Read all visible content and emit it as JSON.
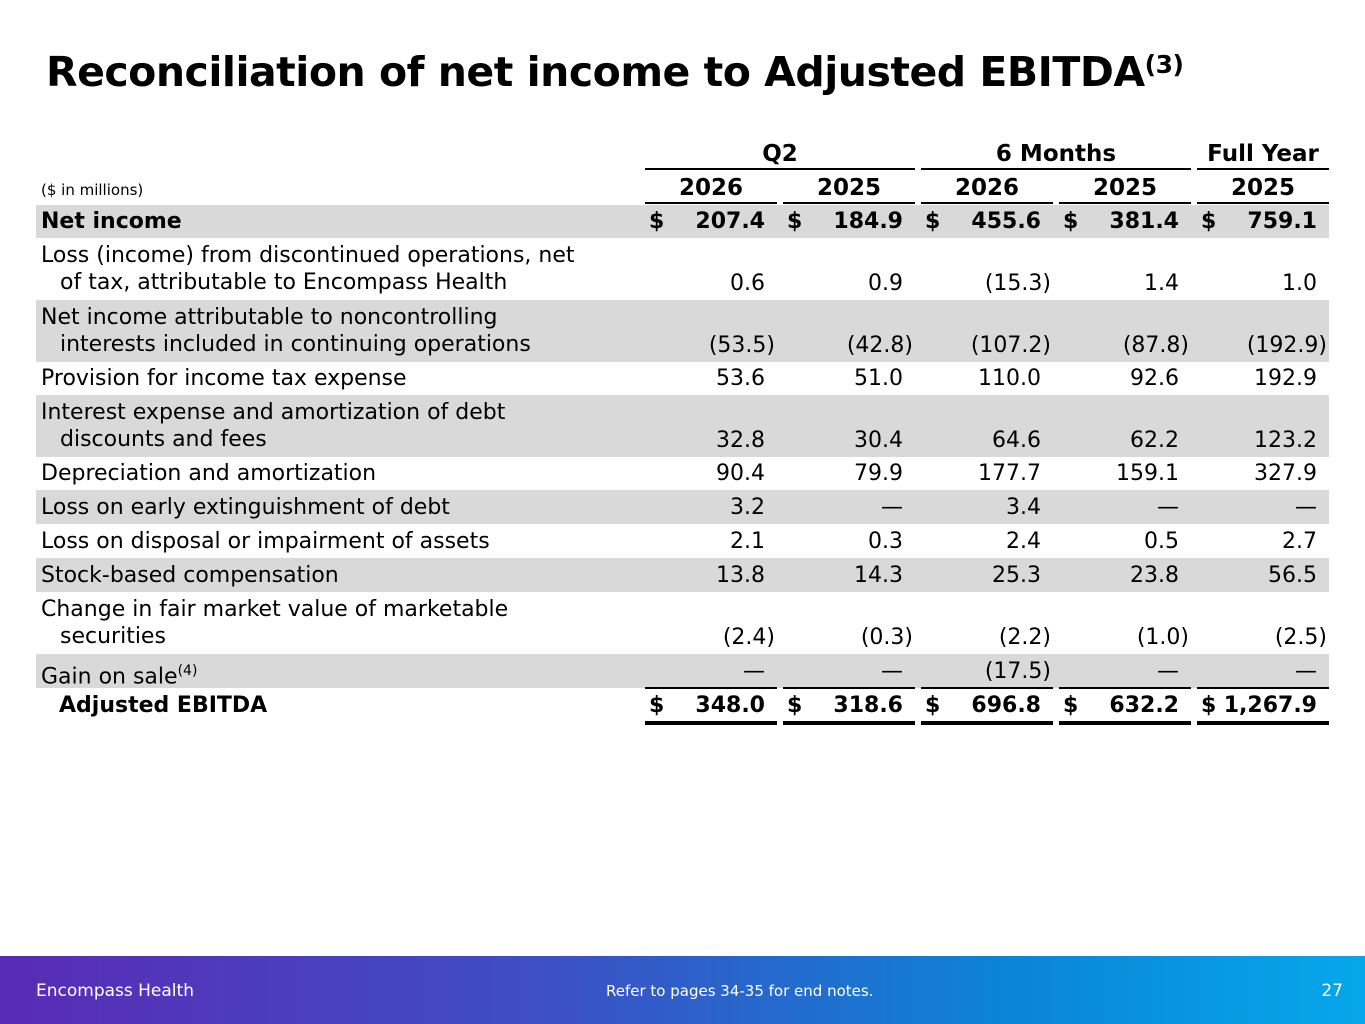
{
  "title": {
    "text": "Reconciliation of net income to Adjusted EBITDA",
    "sup": "(3)"
  },
  "units_label": "($ in millions)",
  "column_groups": [
    "Q2",
    "6 Months",
    "Full Year"
  ],
  "years": [
    "2026",
    "2025",
    "2026",
    "2025",
    "2025"
  ],
  "currency_symbol": "$",
  "rows": [
    {
      "label": "Net income",
      "values": [
        "207.4",
        "184.9",
        "455.6",
        "381.4",
        "759.1"
      ]
    },
    {
      "label_line1": "Loss (income) from discontinued operations, net",
      "label_line2": "of tax, attributable to Encompass Health",
      "values": [
        "0.6",
        "0.9",
        "(15.3)",
        "1.4",
        "1.0"
      ]
    },
    {
      "label_line1": "Net income attributable to noncontrolling",
      "label_line2": "interests included in continuing operations",
      "values": [
        "(53.5)",
        "(42.8)",
        "(107.2)",
        "(87.8)",
        "(192.9)"
      ]
    },
    {
      "label": "Provision for income tax expense",
      "values": [
        "53.6",
        "51.0",
        "110.0",
        "92.6",
        "192.9"
      ]
    },
    {
      "label_line1": "Interest expense and amortization of debt",
      "label_line2": "discounts and fees",
      "values": [
        "32.8",
        "30.4",
        "64.6",
        "62.2",
        "123.2"
      ]
    },
    {
      "label": "Depreciation and amortization",
      "values": [
        "90.4",
        "79.9",
        "177.7",
        "159.1",
        "327.9"
      ]
    },
    {
      "label": "Loss on early extinguishment of debt",
      "values": [
        "3.2",
        "—",
        "3.4",
        "—",
        "—"
      ]
    },
    {
      "label": "Loss on disposal or impairment of assets",
      "values": [
        "2.1",
        "0.3",
        "2.4",
        "0.5",
        "2.7"
      ]
    },
    {
      "label": "Stock-based compensation",
      "values": [
        "13.8",
        "14.3",
        "25.3",
        "23.8",
        "56.5"
      ]
    },
    {
      "label_line1": "Change in fair market value of marketable",
      "label_line2": "securities",
      "values": [
        "(2.4)",
        "(0.3)",
        "(2.2)",
        "(1.0)",
        "(2.5)"
      ]
    },
    {
      "label": "Gain on sale",
      "label_sup": "(4)",
      "values": [
        "—",
        "—",
        "(17.5)",
        "—",
        "—"
      ]
    },
    {
      "label": "Adjusted EBITDA",
      "values": [
        "348.0",
        "318.6",
        "696.8",
        "632.2",
        "1,267.9"
      ]
    }
  ],
  "footer": {
    "brand": "Encompass Health",
    "note": "Refer to pages 34-35 for end notes.",
    "page": "27"
  }
}
